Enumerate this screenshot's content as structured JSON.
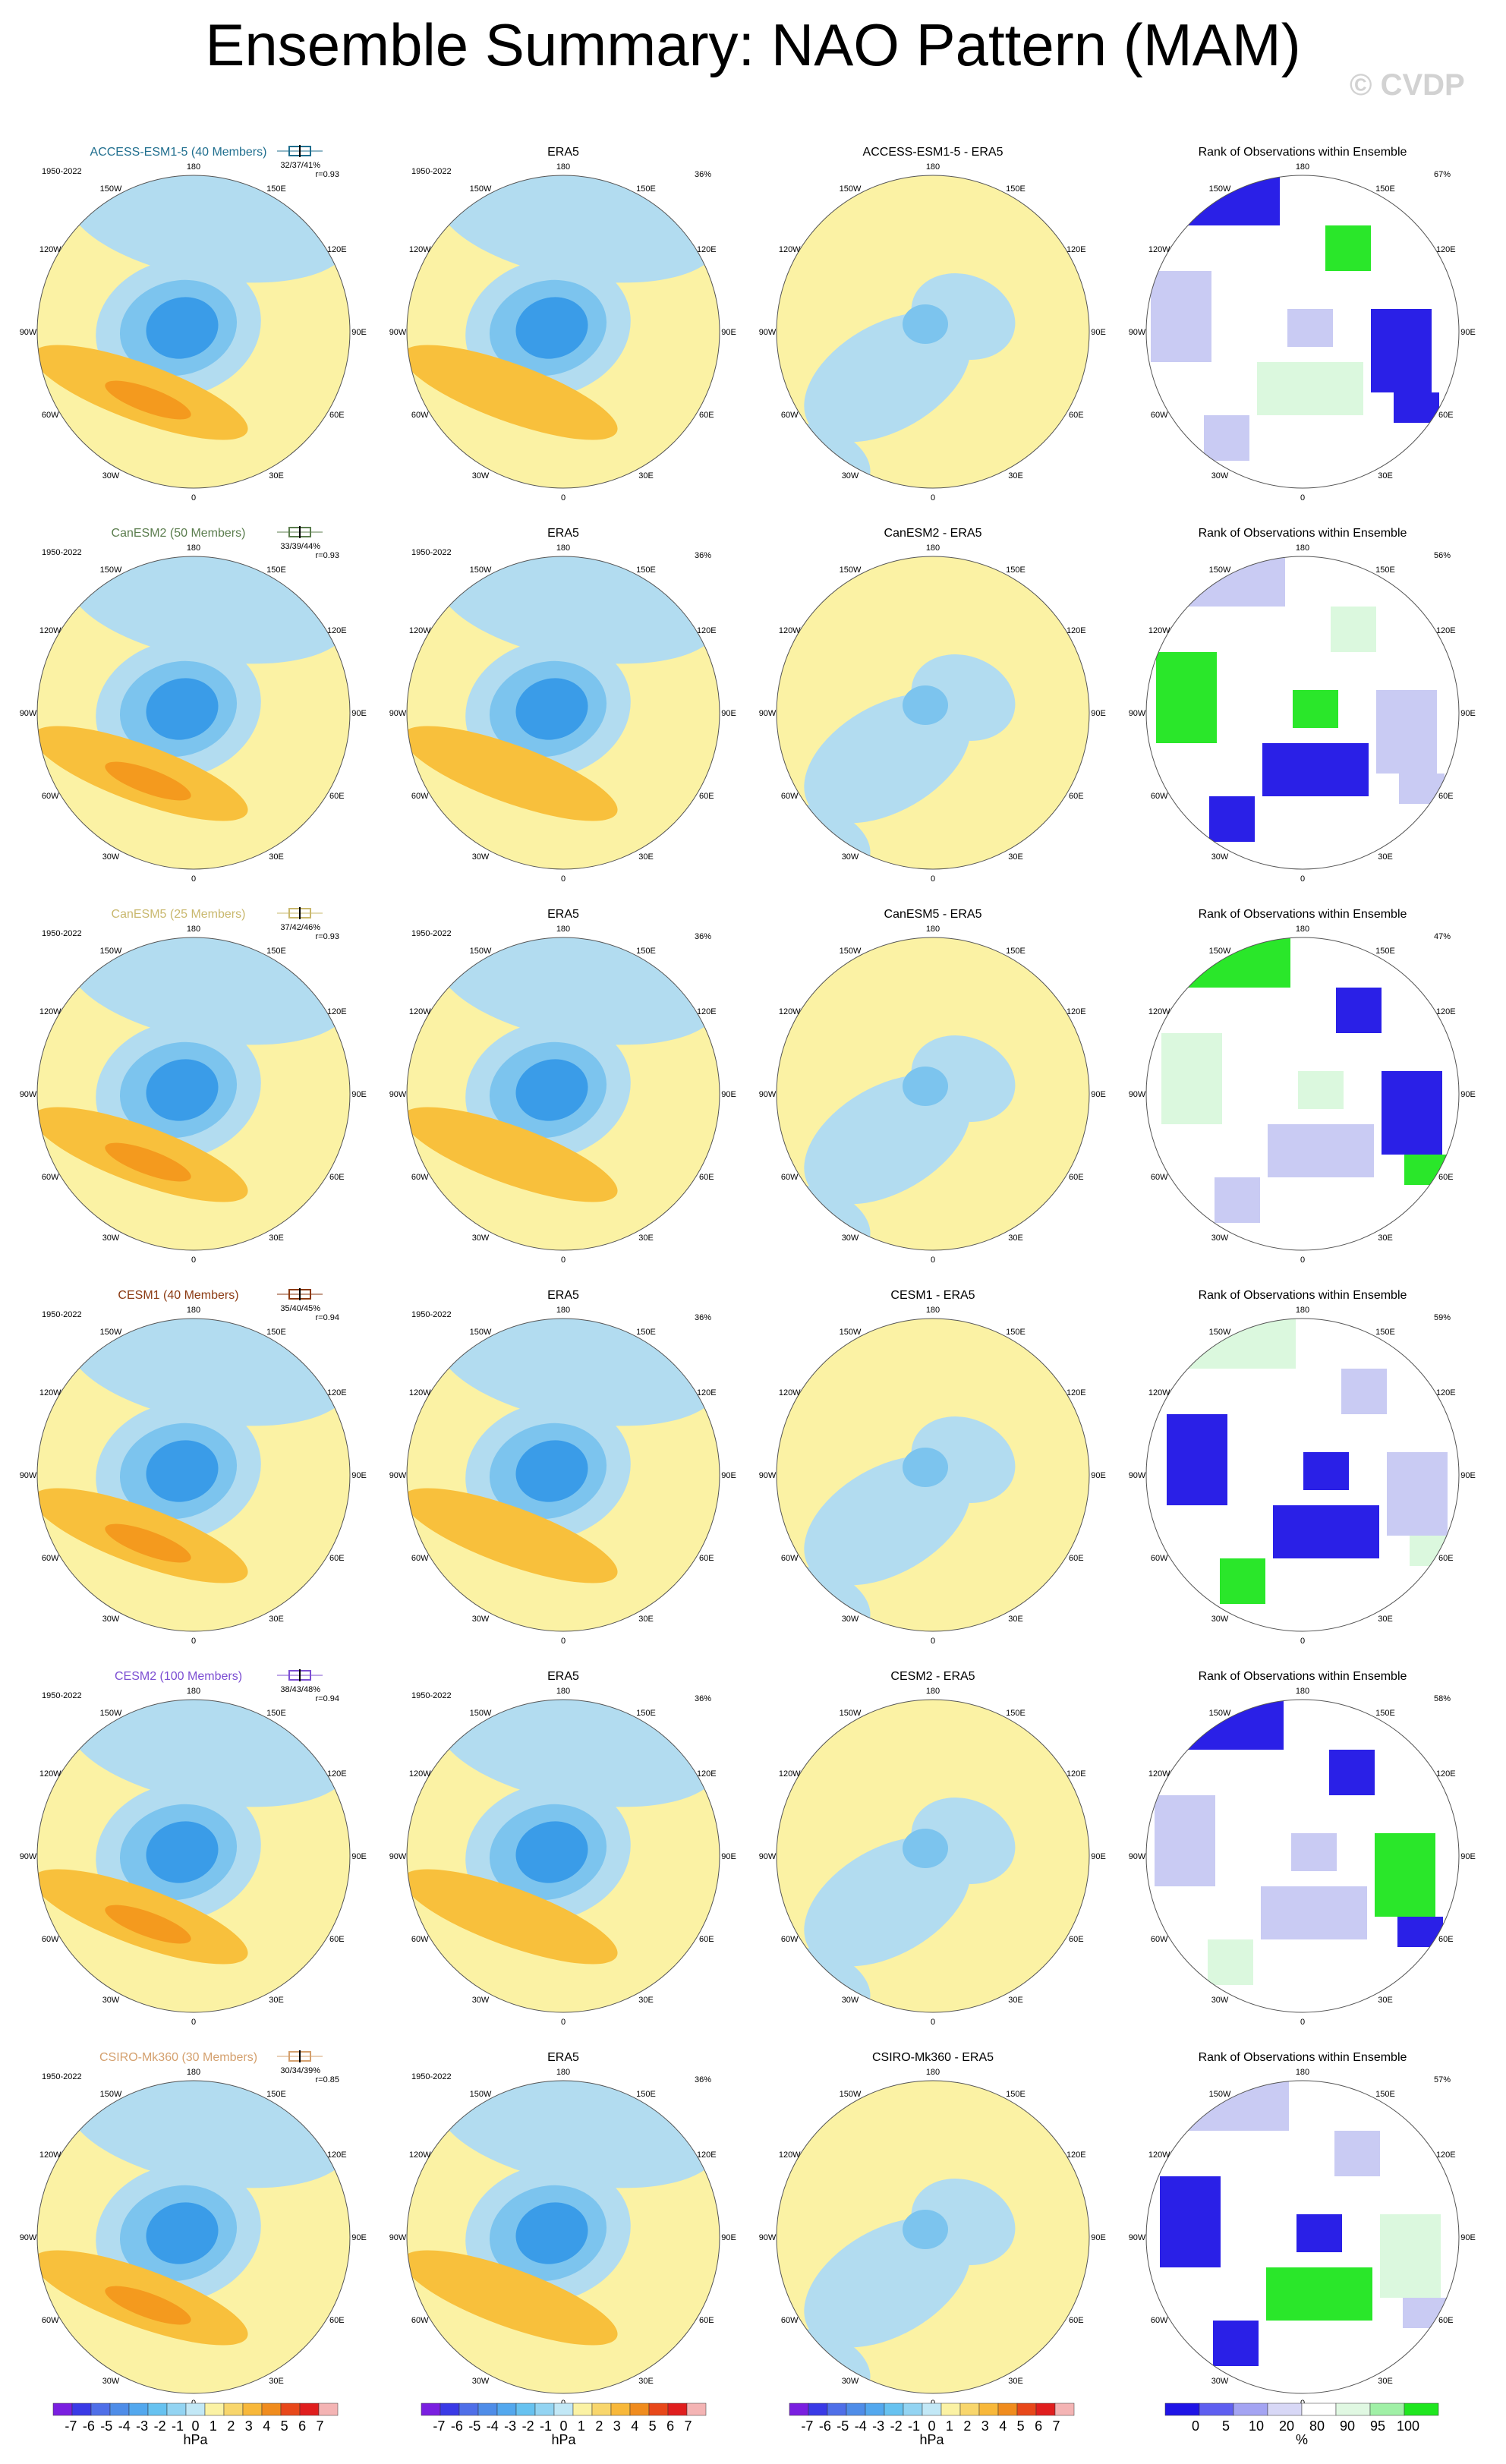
{
  "title": "Ensemble Summary: NAO Pattern (MAM)",
  "copyright": "© CVDP",
  "lon_labels": [
    "180",
    "150E",
    "120E",
    "90E",
    "60E",
    "30E",
    "0",
    "30W",
    "60W",
    "90W",
    "120W",
    "150W"
  ],
  "colors": {
    "yellow": "#fbf2a4",
    "lightblue": "#b2dcf0",
    "midblue": "#7cc4ee",
    "blue": "#3a9ce8",
    "orange": "#f8c03c",
    "deeporange": "#f49a1e",
    "rankblue": "#1f14e6",
    "rankpale": "#c6c8f2",
    "rankgreen": "#1fe61f",
    "rankpalegreen": "#d9f8dc"
  },
  "rows": [
    {
      "model_title": "ACCESS-ESM1-5 (40 Members)",
      "model_color": "#1f6e8e",
      "years": "1950-2022",
      "stats": "32/37/41%",
      "r": "r=0.93",
      "era5": "ERA5",
      "era5_pct": "36%",
      "diff_title": "ACCESS-ESM1-5 - ERA5",
      "rank_title": "Rank of Observations within Ensemble",
      "rank_pct": "67%"
    },
    {
      "model_title": "CanESM2 (50 Members)",
      "model_color": "#5b7d4e",
      "years": "1950-2022",
      "stats": "33/39/44%",
      "r": "r=0.93",
      "era5": "ERA5",
      "era5_pct": "36%",
      "diff_title": "CanESM2 - ERA5",
      "rank_title": "Rank of Observations within Ensemble",
      "rank_pct": "56%"
    },
    {
      "model_title": "CanESM5 (25 Members)",
      "model_color": "#c9b86e",
      "years": "1950-2022",
      "stats": "37/42/46%",
      "r": "r=0.93",
      "era5": "ERA5",
      "era5_pct": "36%",
      "diff_title": "CanESM5 - ERA5",
      "rank_title": "Rank of Observations within Ensemble",
      "rank_pct": "47%"
    },
    {
      "model_title": "CESM1 (40 Members)",
      "model_color": "#8b3a12",
      "years": "1950-2022",
      "stats": "35/40/45%",
      "r": "r=0.94",
      "era5": "ERA5",
      "era5_pct": "36%",
      "diff_title": "CESM1 - ERA5",
      "rank_title": "Rank of Observations within Ensemble",
      "rank_pct": "59%"
    },
    {
      "model_title": "CESM2 (100 Members)",
      "model_color": "#7c4ed2",
      "years": "1950-2022",
      "stats": "38/43/48%",
      "r": "r=0.94",
      "era5": "ERA5",
      "era5_pct": "36%",
      "diff_title": "CESM2 - ERA5",
      "rank_title": "Rank of Observations within Ensemble",
      "rank_pct": "58%"
    },
    {
      "model_title": "CSIRO-Mk360 (30 Members)",
      "model_color": "#d4a06e",
      "years": "1950-2022",
      "stats": "30/34/39%",
      "r": "r=0.85",
      "era5": "ERA5",
      "era5_pct": "36%",
      "diff_title": "CSIRO-Mk360 - ERA5",
      "rank_title": "Rank of Observations within Ensemble",
      "rank_pct": "57%"
    }
  ],
  "colorbar_hpa": {
    "ticks": [
      "-7",
      "-6",
      "-5",
      "-4",
      "-3",
      "-2",
      "-1",
      "0",
      "1",
      "2",
      "3",
      "4",
      "5",
      "6",
      "7"
    ],
    "colors": [
      "#7a1fe0",
      "#3a3ae6",
      "#4f6fe8",
      "#4f8de8",
      "#53a8ee",
      "#67c2f0",
      "#93d4f2",
      "#c2e8f6",
      "#fbf2a4",
      "#f8d66c",
      "#f8b83a",
      "#f08c1e",
      "#e8481a",
      "#e01e1e",
      "#f4b4b4"
    ],
    "unit": "hPa"
  },
  "colorbar_rank": {
    "ticks": [
      "0",
      "5",
      "10",
      "20",
      "80",
      "90",
      "95",
      "100"
    ],
    "colors": [
      "#1f14e6",
      "#5f5ff0",
      "#a4a4f2",
      "#d8d8f6",
      "#ffffff",
      "#e0f8e2",
      "#a0f0a6",
      "#1fe61f"
    ],
    "unit": "%"
  },
  "chart_data": {
    "type": "heatmap",
    "title": "Ensemble Summary: NAO Pattern (MAM)",
    "panels_per_row": [
      "ensemble mean",
      "ERA5",
      "difference",
      "rank of observations"
    ],
    "colorbar_hpa_range": [
      -7,
      7
    ],
    "colorbar_rank_levels": [
      0,
      5,
      10,
      20,
      80,
      90,
      95,
      100
    ],
    "models": [
      {
        "name": "ACCESS-ESM1-5",
        "members": 40,
        "pct_var": "32/37/41%",
        "r": 0.93,
        "rank_pct": 67
      },
      {
        "name": "CanESM2",
        "members": 50,
        "pct_var": "33/39/44%",
        "r": 0.93,
        "rank_pct": 56
      },
      {
        "name": "CanESM5",
        "members": 25,
        "pct_var": "37/42/46%",
        "r": 0.93,
        "rank_pct": 47
      },
      {
        "name": "CESM1",
        "members": 40,
        "pct_var": "35/40/45%",
        "r": 0.94,
        "rank_pct": 59
      },
      {
        "name": "CESM2",
        "members": 100,
        "pct_var": "38/43/48%",
        "r": 0.94,
        "rank_pct": 58
      },
      {
        "name": "CSIRO-Mk360",
        "members": 30,
        "pct_var": "30/34/39%",
        "r": 0.85,
        "rank_pct": 57
      }
    ],
    "era5_pct_var": 36,
    "period": "1950-2022"
  }
}
